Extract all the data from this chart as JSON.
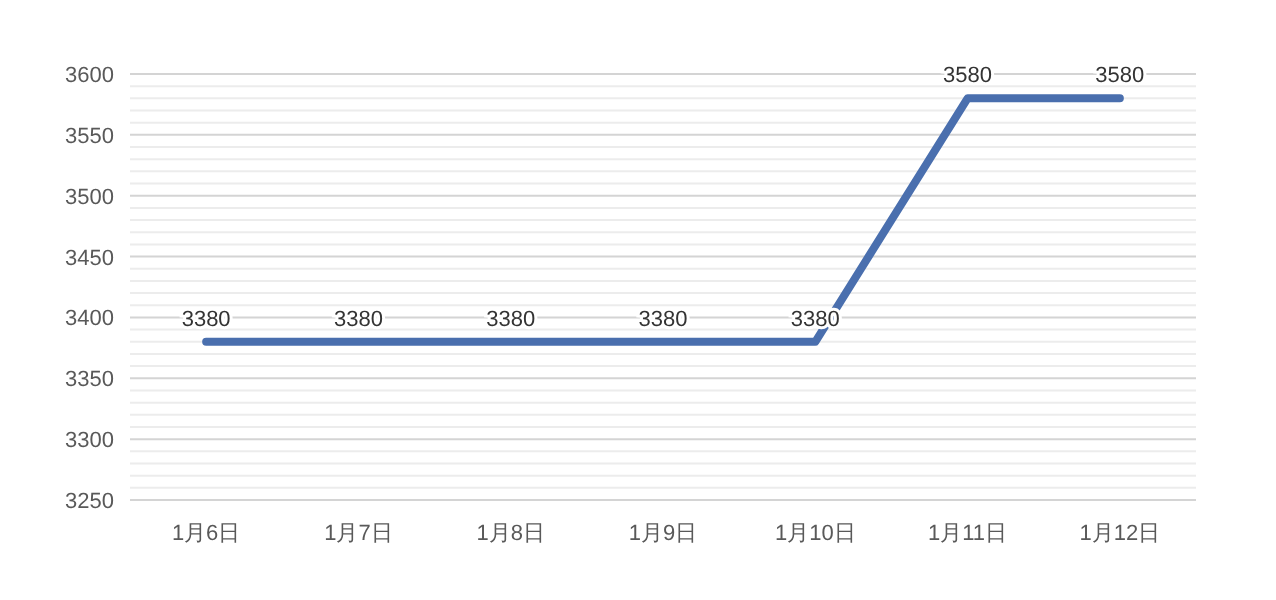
{
  "chart_data": {
    "type": "line",
    "categories": [
      "1月6日",
      "1月7日",
      "1月8日",
      "1月9日",
      "1月10日",
      "1月11日",
      "1月12日"
    ],
    "series": [
      {
        "color": "#4a6fae",
        "values": [
          3380,
          3380,
          3380,
          3380,
          3380,
          3580,
          3580
        ]
      }
    ],
    "ylim": [
      3250,
      3600
    ],
    "yticks": [
      3250,
      {
        "value": 3260,
        "label": null
      },
      {
        "value": 3270,
        "label": null
      },
      {
        "value": 3280,
        "label": null
      },
      {
        "value": 3290,
        "label": null
      },
      3300,
      {
        "value": 3310,
        "label": null
      },
      {
        "value": 3320,
        "label": null
      },
      {
        "value": 3330,
        "label": null
      },
      {
        "value": 3340,
        "label": null
      },
      3350,
      {
        "value": 3360,
        "label": null
      },
      {
        "value": 3370,
        "label": null
      },
      {
        "value": 3380,
        "label": null
      },
      {
        "value": 3390,
        "label": null
      },
      3400,
      {
        "value": 3410,
        "label": null
      },
      {
        "value": 3420,
        "label": null
      },
      {
        "value": 3430,
        "label": null
      },
      {
        "value": 3440,
        "label": null
      },
      3450,
      {
        "value": 3460,
        "label": null
      },
      {
        "value": 3470,
        "label": null
      },
      {
        "value": 3480,
        "label": null
      },
      {
        "value": 3490,
        "label": null
      },
      3500,
      {
        "value": 3510,
        "label": null
      },
      {
        "value": 3520,
        "label": null
      },
      {
        "value": 3530,
        "label": null
      },
      {
        "value": 3540,
        "label": null
      },
      3550,
      {
        "value": 3560,
        "label": null
      },
      {
        "value": 3570,
        "label": null
      },
      {
        "value": 3580,
        "label": null
      },
      {
        "value": 3590,
        "label": null
      },
      3600
    ],
    "grid": "y",
    "data_labels": true,
    "marker": "none",
    "line_style": "solid"
  }
}
